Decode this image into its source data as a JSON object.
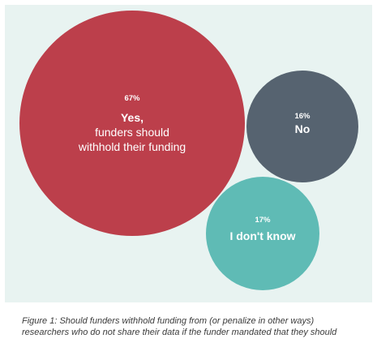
{
  "chart_data": {
    "type": "bubble",
    "title": "",
    "series": [
      {
        "category": "Yes, funders should withhold their funding",
        "value": 67,
        "value_label": "67%",
        "label_lines": [
          "Yes,",
          "funders should",
          "withhold their funding"
        ],
        "color": "#bc3f4b"
      },
      {
        "category": "No",
        "value": 16,
        "value_label": "16%",
        "label_lines": [
          "No"
        ],
        "color": "#566370"
      },
      {
        "category": "I don't know",
        "value": 17,
        "value_label": "17%",
        "label_lines": [
          "I don't know"
        ],
        "color": "#5fbbb5"
      }
    ],
    "background": "#e8f3f1"
  },
  "caption": {
    "text": "Figure 1: Should funders withhold funding from (or penalize in other ways) researchers who do not share their data if the funder mandated that they should"
  }
}
